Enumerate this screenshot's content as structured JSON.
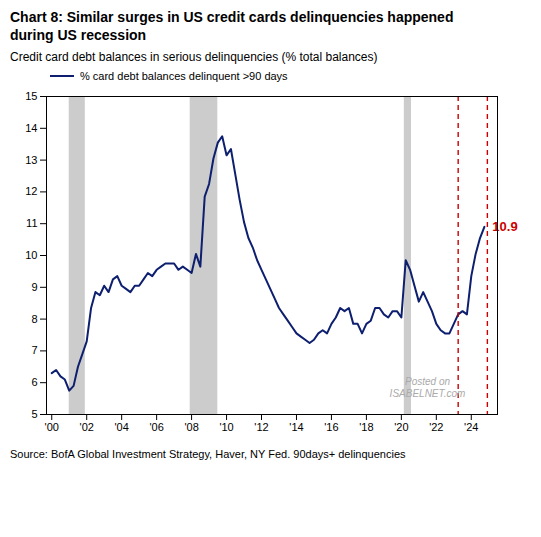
{
  "chart_data": {
    "type": "line",
    "title": "Chart 8: Similar surges in US credit cards delinquencies happened\nduring US recession",
    "subtitle": "Credit card debt balances in serious delinquencies (% total balances)",
    "caption": "Source: BofA Global Investment Strategy, Haver, NY Fed. 90days+ delinquencies",
    "x": [
      2000.0,
      2000.25,
      2000.5,
      2000.75,
      2001.0,
      2001.25,
      2001.5,
      2001.75,
      2002.0,
      2002.25,
      2002.5,
      2002.75,
      2003.0,
      2003.25,
      2003.5,
      2003.75,
      2004.0,
      2004.25,
      2004.5,
      2004.75,
      2005.0,
      2005.25,
      2005.5,
      2005.75,
      2006.0,
      2006.25,
      2006.5,
      2006.75,
      2007.0,
      2007.25,
      2007.5,
      2007.75,
      2008.0,
      2008.25,
      2008.5,
      2008.75,
      2009.0,
      2009.25,
      2009.5,
      2009.75,
      2010.0,
      2010.25,
      2010.5,
      2010.75,
      2011.0,
      2011.25,
      2011.5,
      2011.75,
      2012.0,
      2012.25,
      2012.5,
      2012.75,
      2013.0,
      2013.25,
      2013.5,
      2013.75,
      2014.0,
      2014.25,
      2014.5,
      2014.75,
      2015.0,
      2015.25,
      2015.5,
      2015.75,
      2016.0,
      2016.25,
      2016.5,
      2016.75,
      2017.0,
      2017.25,
      2017.5,
      2017.75,
      2018.0,
      2018.25,
      2018.5,
      2018.75,
      2019.0,
      2019.25,
      2019.5,
      2019.75,
      2020.0,
      2020.25,
      2020.5,
      2020.75,
      2021.0,
      2021.25,
      2021.5,
      2021.75,
      2022.0,
      2022.25,
      2022.5,
      2022.75,
      2023.0,
      2023.25,
      2023.5,
      2023.75,
      2024.0,
      2024.25,
      2024.5,
      2024.75
    ],
    "series": [
      {
        "name": "% card debt balances delinquent >90 days",
        "color": "#0d1f6e",
        "line_style": "solid",
        "values": [
          6.3,
          6.4,
          6.2,
          6.1,
          5.75,
          5.9,
          6.5,
          6.9,
          7.3,
          8.35,
          8.85,
          8.75,
          9.05,
          8.85,
          9.25,
          9.35,
          9.05,
          8.95,
          8.85,
          9.05,
          9.05,
          9.25,
          9.45,
          9.35,
          9.55,
          9.65,
          9.75,
          9.75,
          9.75,
          9.55,
          9.65,
          9.55,
          9.45,
          10.05,
          9.65,
          11.85,
          12.25,
          13.05,
          13.55,
          13.75,
          13.15,
          13.35,
          12.55,
          11.75,
          11.05,
          10.55,
          10.25,
          9.85,
          9.55,
          9.25,
          8.95,
          8.65,
          8.35,
          8.15,
          7.95,
          7.75,
          7.55,
          7.45,
          7.35,
          7.25,
          7.35,
          7.55,
          7.65,
          7.55,
          7.85,
          8.05,
          8.35,
          8.25,
          8.35,
          7.85,
          7.85,
          7.55,
          7.85,
          7.95,
          8.35,
          8.35,
          8.15,
          8.05,
          8.25,
          8.25,
          8.05,
          9.85,
          9.55,
          9.05,
          8.55,
          8.85,
          8.55,
          8.25,
          7.85,
          7.65,
          7.55,
          7.55,
          7.85,
          8.15,
          8.25,
          8.15,
          9.35,
          10.05,
          10.55,
          10.9
        ]
      }
    ],
    "recession_bands": [
      {
        "x1": 2001.0,
        "x2": 2001.92,
        "color": "#cccccc"
      },
      {
        "x1": 2007.92,
        "x2": 2009.5,
        "color": "#cccccc"
      },
      {
        "x1": 2020.17,
        "x2": 2020.58,
        "color": "#cccccc"
      }
    ],
    "vertical_lines": [
      {
        "x": 2023.25,
        "color": "#cc0000",
        "line_style": "dashed"
      },
      {
        "x": 2024.92,
        "color": "#cc0000",
        "line_style": "dashed"
      }
    ],
    "annotations": [
      {
        "text": "10.9",
        "x": 2024.92,
        "y": 10.9,
        "color": "#cc0000"
      },
      {
        "text": "Posted on\nISABELNET.com"
      }
    ],
    "xlim": [
      1999.7,
      2025.5
    ],
    "xticks": [
      {
        "value": 2000,
        "label": "'00"
      },
      {
        "value": 2002,
        "label": "'02"
      },
      {
        "value": 2004,
        "label": "'04"
      },
      {
        "value": 2006,
        "label": "'06"
      },
      {
        "value": 2008,
        "label": "'08"
      },
      {
        "value": 2010,
        "label": "'10"
      },
      {
        "value": 2012,
        "label": "'12"
      },
      {
        "value": 2014,
        "label": "'14"
      },
      {
        "value": 2016,
        "label": "'16"
      },
      {
        "value": 2018,
        "label": "'18"
      },
      {
        "value": 2020,
        "label": "'20"
      },
      {
        "value": 2022,
        "label": "'22"
      },
      {
        "value": 2024,
        "label": "'24"
      }
    ],
    "ylim": [
      5,
      15
    ],
    "yticks": [
      5,
      6,
      7,
      8,
      9,
      10,
      11,
      12,
      13,
      14,
      15
    ],
    "grid": false,
    "legend": "top-left"
  }
}
